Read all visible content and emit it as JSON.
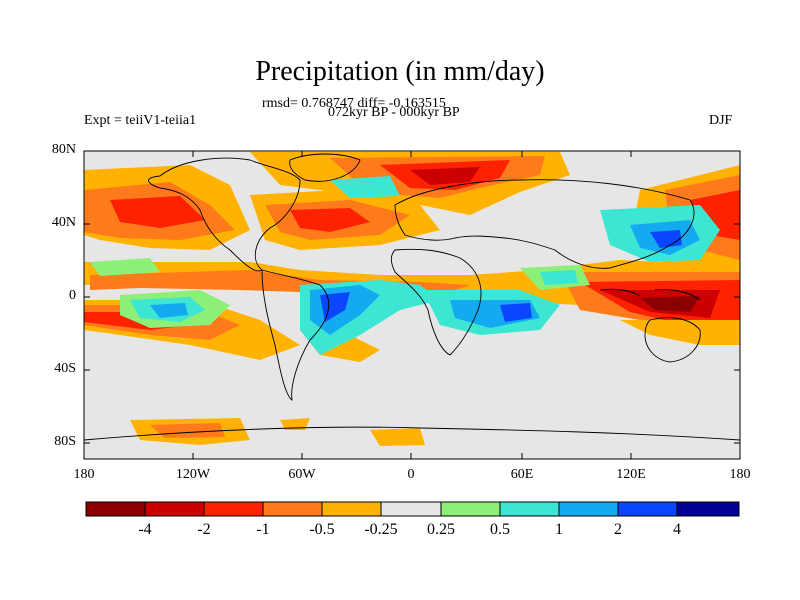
{
  "header": {
    "title": "Precipitation (in mm/day)",
    "stats": "rmsd= 0.768747 diff= -0.163515",
    "period": "072kyr BP - 000kyr BP",
    "experiment": "Expt = teiiV1-teiia1",
    "season": "DJF"
  },
  "axes": {
    "lat_labels": [
      "80N",
      "40N",
      "0",
      "40S",
      "80S"
    ],
    "lon_labels": [
      "180",
      "120W",
      "60W",
      "0",
      "60E",
      "120E",
      "180"
    ]
  },
  "colorbar": {
    "labels": [
      "-4",
      "-2",
      "-1",
      "-0.5",
      "-0.25",
      "0.25",
      "0.5",
      "1",
      "2",
      "4"
    ],
    "colors": [
      "#8b0000",
      "#cc0000",
      "#ff2200",
      "#ff7a1a",
      "#ffb300",
      "#e6e6e6",
      "#8cf078",
      "#3ce6d2",
      "#14aaf0",
      "#0a46ff",
      "#000096"
    ]
  },
  "map_colors": {
    "background": "#e6e6e6",
    "coast": "#000000"
  }
}
